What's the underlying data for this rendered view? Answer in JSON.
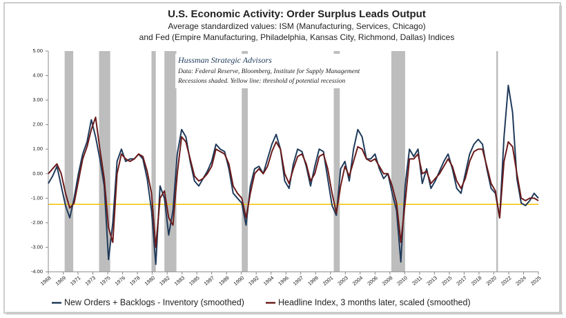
{
  "chart_data": {
    "type": "line",
    "title": "U.S. Economic Activity: Order Surplus Leads Output",
    "subtitle": [
      "Average standardized values: ISM (Manufacturing, Services, Chicago)",
      "and Fed (Empire Manufacturing, Philadelphia, Kansas City, Richmond, Dallas) Indices"
    ],
    "annotations": [
      "Hussman Strategic Advisors",
      "Data: Federal Reserve, Bloomberg, Institute for Supply Management",
      "Recessions shaded.  Yellow line: threshold of potential recession"
    ],
    "recessions": [
      [
        1969.9,
        1970.9
      ],
      [
        1973.9,
        1975.2
      ],
      [
        1980.0,
        1980.5
      ],
      [
        1981.5,
        1982.9
      ],
      [
        1990.5,
        1991.2
      ],
      [
        2001.2,
        2001.9
      ],
      [
        2007.9,
        2009.5
      ],
      [
        2020.1,
        2020.3
      ]
    ],
    "recession_color": "#bdbdbd",
    "threshold": -1.25,
    "threshold_color": "#f2c200",
    "x": [
      1968.0,
      1968.5,
      1969.0,
      1969.5,
      1970.0,
      1970.5,
      1971.0,
      1971.5,
      1972.0,
      1972.5,
      1973.0,
      1973.5,
      1974.0,
      1974.5,
      1975.0,
      1975.5,
      1976.0,
      1976.5,
      1977.0,
      1977.5,
      1978.0,
      1978.5,
      1979.0,
      1979.5,
      1980.0,
      1980.5,
      1981.0,
      1981.5,
      1982.0,
      1982.5,
      1983.0,
      1983.5,
      1984.0,
      1984.5,
      1985.0,
      1985.5,
      1986.0,
      1986.5,
      1987.0,
      1987.5,
      1988.0,
      1988.5,
      1989.0,
      1989.5,
      1990.0,
      1990.5,
      1991.0,
      1991.5,
      1992.0,
      1992.5,
      1993.0,
      1993.5,
      1994.0,
      1994.5,
      1995.0,
      1995.5,
      1996.0,
      1996.5,
      1997.0,
      1997.5,
      1998.0,
      1998.5,
      1999.0,
      1999.5,
      2000.0,
      2000.5,
      2001.0,
      2001.5,
      2002.0,
      2002.5,
      2003.0,
      2003.5,
      2004.0,
      2004.5,
      2005.0,
      2005.5,
      2006.0,
      2006.5,
      2007.0,
      2007.5,
      2008.0,
      2008.5,
      2009.0,
      2009.5,
      2010.0,
      2010.5,
      2011.0,
      2011.5,
      2012.0,
      2012.5,
      2013.0,
      2013.5,
      2014.0,
      2014.5,
      2015.0,
      2015.5,
      2016.0,
      2016.5,
      2017.0,
      2017.5,
      2018.0,
      2018.5,
      2019.0,
      2019.5,
      2020.0,
      2020.5,
      2021.0,
      2021.5,
      2022.0,
      2022.5,
      2023.0,
      2023.5,
      2024.0,
      2024.5,
      2025.0
    ],
    "series": [
      {
        "name": "New Orders + Backlogs - Inventory (smoothed)",
        "color": "#1f3a5a",
        "values": [
          -0.4,
          -0.1,
          0.3,
          -0.5,
          -1.3,
          -1.8,
          -1.0,
          0.0,
          0.8,
          1.3,
          2.2,
          1.5,
          0.6,
          -0.5,
          -3.5,
          -2.0,
          0.5,
          1.0,
          0.5,
          0.6,
          0.6,
          0.8,
          0.6,
          -0.2,
          -1.5,
          -3.7,
          -0.5,
          -1.0,
          -2.5,
          -1.5,
          0.8,
          1.8,
          1.5,
          0.5,
          -0.3,
          -0.5,
          -0.2,
          0.1,
          0.5,
          1.2,
          1.0,
          0.9,
          0.2,
          -0.8,
          -1.0,
          -1.2,
          -2.1,
          -0.5,
          0.2,
          0.3,
          0.0,
          0.6,
          1.2,
          1.6,
          1.0,
          -0.3,
          -0.6,
          0.4,
          1.0,
          0.9,
          0.3,
          -0.5,
          0.3,
          1.0,
          0.9,
          -0.2,
          -1.3,
          -1.7,
          0.2,
          0.5,
          -0.3,
          1.0,
          1.8,
          1.5,
          0.6,
          0.6,
          0.8,
          0.2,
          -0.2,
          0.0,
          -0.8,
          -1.5,
          -3.6,
          -0.5,
          1.0,
          0.7,
          1.0,
          -0.4,
          0.2,
          -0.6,
          -0.3,
          0.1,
          0.5,
          0.8,
          0.2,
          -0.6,
          -0.8,
          0.0,
          0.8,
          1.2,
          1.4,
          1.2,
          0.2,
          -0.6,
          -0.8,
          -1.8,
          1.5,
          3.6,
          2.5,
          -0.2,
          -1.2,
          -1.3,
          -1.1,
          -0.8,
          -1.0
        ]
      },
      {
        "name": "Headline Index, 3 months later, scaled (smoothed)",
        "color": "#6b1a1a",
        "values": [
          0.0,
          0.2,
          0.4,
          0.0,
          -0.8,
          -1.4,
          -1.2,
          -0.3,
          0.6,
          1.1,
          1.8,
          2.3,
          1.0,
          -0.2,
          -2.2,
          -2.8,
          0.0,
          0.8,
          0.6,
          0.5,
          0.6,
          0.8,
          0.7,
          0.1,
          -0.8,
          -3.0,
          -1.0,
          -0.7,
          -1.8,
          -2.1,
          0.0,
          1.5,
          1.3,
          0.6,
          -0.1,
          -0.3,
          -0.2,
          0.0,
          0.3,
          1.0,
          0.9,
          0.8,
          0.4,
          -0.5,
          -0.8,
          -1.0,
          -1.8,
          -0.8,
          0.0,
          0.2,
          0.0,
          0.3,
          0.9,
          1.3,
          1.0,
          0.0,
          -0.4,
          0.2,
          0.7,
          0.8,
          0.4,
          -0.3,
          0.0,
          0.7,
          0.8,
          0.2,
          -0.8,
          -1.6,
          -0.5,
          0.3,
          -0.1,
          0.5,
          1.1,
          1.0,
          0.6,
          0.5,
          0.6,
          0.3,
          0.0,
          0.0,
          -0.5,
          -1.2,
          -2.8,
          -1.2,
          0.6,
          0.6,
          0.8,
          0.0,
          0.1,
          -0.4,
          -0.2,
          0.0,
          0.3,
          0.6,
          0.3,
          -0.3,
          -0.6,
          -0.2,
          0.5,
          0.9,
          1.0,
          1.0,
          0.3,
          -0.4,
          -0.7,
          -1.8,
          0.5,
          1.3,
          1.1,
          0.0,
          -1.0,
          -1.1,
          -1.0,
          -1.0,
          -1.1
        ]
      }
    ],
    "xlim": [
      1968,
      2025
    ],
    "xticks": [
      {
        "value": 1968.0,
        "label": "1968"
      },
      {
        "value": 1969.73,
        "label": "1969"
      },
      {
        "value": 1971.45,
        "label": "1971"
      },
      {
        "value": 1973.18,
        "label": "1973"
      },
      {
        "value": 1974.91,
        "label": "1975"
      },
      {
        "value": 1976.64,
        "label": "1976"
      },
      {
        "value": 1978.36,
        "label": "1978"
      },
      {
        "value": 1980.09,
        "label": "1980"
      },
      {
        "value": 1981.82,
        "label": "1982"
      },
      {
        "value": 1983.55,
        "label": "1983"
      },
      {
        "value": 1985.27,
        "label": "1985"
      },
      {
        "value": 1987.0,
        "label": "1987"
      },
      {
        "value": 1988.73,
        "label": "1989"
      },
      {
        "value": 1990.45,
        "label": "1990"
      },
      {
        "value": 1992.18,
        "label": "1992"
      },
      {
        "value": 1993.91,
        "label": "1994"
      },
      {
        "value": 1995.64,
        "label": "1996"
      },
      {
        "value": 1997.36,
        "label": "1997"
      },
      {
        "value": 1999.09,
        "label": "1999"
      },
      {
        "value": 2000.82,
        "label": "2001"
      },
      {
        "value": 2002.55,
        "label": "2003"
      },
      {
        "value": 2004.27,
        "label": "2004"
      },
      {
        "value": 2006.0,
        "label": "2006"
      },
      {
        "value": 2007.73,
        "label": "2008"
      },
      {
        "value": 2009.45,
        "label": "2010"
      },
      {
        "value": 2011.18,
        "label": "2011"
      },
      {
        "value": 2012.91,
        "label": "2013"
      },
      {
        "value": 2014.64,
        "label": "2015"
      },
      {
        "value": 2016.36,
        "label": "2017"
      },
      {
        "value": 2018.09,
        "label": "2018"
      },
      {
        "value": 2019.82,
        "label": "2020"
      },
      {
        "value": 2021.55,
        "label": "2022"
      },
      {
        "value": 2023.27,
        "label": "2024"
      },
      {
        "value": 2025.0,
        "label": "2025"
      }
    ],
    "ylim": [
      -4,
      5
    ],
    "yticks": [
      {
        "value": -4,
        "label": "-4.00"
      },
      {
        "value": -3,
        "label": "-3.00"
      },
      {
        "value": -2,
        "label": "-2.00"
      },
      {
        "value": -1,
        "label": "-1.00"
      },
      {
        "value": 0,
        "label": "0.00"
      },
      {
        "value": 1,
        "label": "1.00"
      },
      {
        "value": 2,
        "label": "2.00"
      },
      {
        "value": 3,
        "label": "3.00"
      },
      {
        "value": 4,
        "label": "4.00"
      },
      {
        "value": 5,
        "label": "5.00"
      }
    ],
    "grid": false,
    "legend": "bottom"
  }
}
